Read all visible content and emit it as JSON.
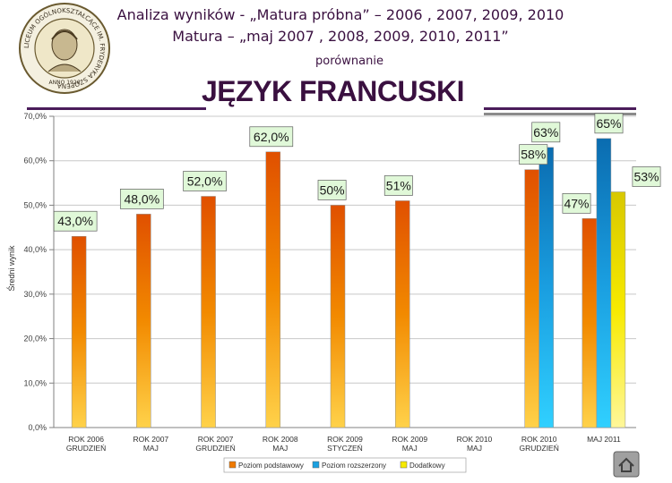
{
  "header": {
    "line1": "Analiza wyników  - „Matura próbna” – 2006 , 2007, 2009, 2010",
    "line2": "Matura – „maj 2007 , 2008, 2009, 2010, 2011”",
    "line3": "porównanie",
    "main_title": "JĘZYK FRANCUSKI"
  },
  "logo": {
    "ring_text": "LICEUM OGÓLNOKSZTAŁCĄCE IM. FRYDERYKA SZOPENA",
    "inner_text": "ANNO 1926"
  },
  "colors": {
    "title": "#3a1040",
    "podstawowy": "#f07a00",
    "rozszerzony": "#1aa0e0",
    "dodatkowy": "#f7ea00",
    "label_bg": "#e0f8d8"
  },
  "chart_data": {
    "type": "bar",
    "ylabel": "Średni wynik",
    "ylim": [
      0,
      70
    ],
    "yticks": [
      "0,0%",
      "10,0%",
      "20,0%",
      "30,0%",
      "40,0%",
      "50,0%",
      "60,0%",
      "70,0%"
    ],
    "categories": [
      [
        "ROK 2006",
        "GRUDZIEŃ"
      ],
      [
        "ROK 2007",
        "MAJ"
      ],
      [
        "ROK 2007",
        "GRUDZIEŃ"
      ],
      [
        "ROK 2008",
        "MAJ"
      ],
      [
        "ROK 2009",
        "STYCZEŃ"
      ],
      [
        "ROK 2009",
        "MAJ"
      ],
      [
        "ROK 2010",
        "MAJ"
      ],
      [
        "ROK 2010",
        "GRUDZIEŃ"
      ],
      [
        "MAJ 2011",
        ""
      ]
    ],
    "series": [
      {
        "name": "Poziom podstawowy",
        "key": "podstawowy",
        "values": [
          43,
          48,
          52,
          62,
          50,
          51,
          null,
          58,
          47
        ],
        "labels": [
          "43,0%",
          "48,0%",
          "52,0%",
          "62,0%",
          "50%",
          "51%",
          null,
          "58%",
          "47%"
        ]
      },
      {
        "name": "Poziom rozszerzony",
        "key": "rozszerzony",
        "values": [
          null,
          null,
          null,
          null,
          null,
          null,
          null,
          63,
          65
        ],
        "labels": [
          null,
          null,
          null,
          null,
          null,
          null,
          null,
          "63%",
          "65%"
        ]
      },
      {
        "name": "Dodatkowy",
        "key": "dodatkowy",
        "values": [
          null,
          null,
          null,
          null,
          null,
          null,
          null,
          null,
          53
        ],
        "labels": [
          null,
          null,
          null,
          null,
          null,
          null,
          null,
          null,
          "53%"
        ]
      }
    ],
    "legend": [
      "Poziom podstawowy",
      "Poziom rozszerzony",
      "Dodatkowy"
    ],
    "legend_position": "bottom",
    "grid": true
  }
}
